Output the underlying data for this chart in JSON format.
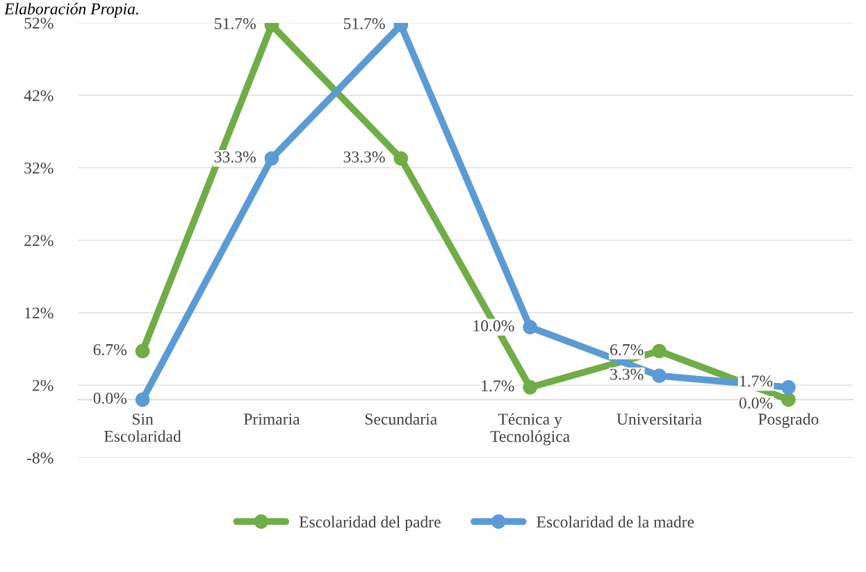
{
  "chart_data": {
    "type": "line",
    "annotations": [
      "Elaboración Propia."
    ],
    "categories": [
      "Sin\nEscolaridad",
      "Primaria",
      "Secundaria",
      "Técnica y\nTecnológica",
      "Universitaria",
      "Posgrado"
    ],
    "series": [
      {
        "name": "Escolaridad del padre",
        "color": "#70ad47",
        "values": [
          6.7,
          51.7,
          33.3,
          1.7,
          6.7,
          0.0
        ],
        "value_labels": [
          "6.7%",
          "51.7%",
          "33.3%",
          "1.7%",
          "6.7%",
          "0.0%"
        ]
      },
      {
        "name": "Escolaridad de la madre",
        "color": "#5b9bd5",
        "values": [
          0.0,
          33.3,
          51.7,
          10.0,
          3.3,
          1.7
        ],
        "value_labels": [
          "0.0%",
          "33.3%",
          "51.7%",
          "10.0%",
          "3.3%",
          "1.7%"
        ]
      }
    ],
    "ylim": [
      -8,
      52
    ],
    "yticks": [
      {
        "value": -8,
        "label": "-8%"
      },
      {
        "value": 2,
        "label": "2%"
      },
      {
        "value": 12,
        "label": "12%"
      },
      {
        "value": 22,
        "label": "22%"
      },
      {
        "value": 32,
        "label": "32%"
      },
      {
        "value": 42,
        "label": "42%"
      },
      {
        "value": 52,
        "label": "52%"
      }
    ],
    "grid": "y",
    "legend": "bottom",
    "marker": "circle",
    "line_style": "solid"
  }
}
